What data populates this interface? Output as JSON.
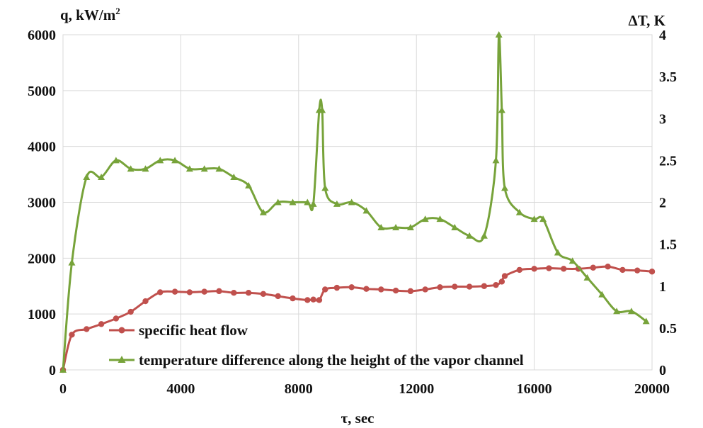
{
  "chart_data": {
    "type": "line",
    "title": "",
    "xlabel": "τ, sec",
    "ylabel_left": "q, kW/m",
    "ylabel_left_sup": "2",
    "ylabel_right": "ΔT, K",
    "xlim": [
      0,
      20000
    ],
    "ylim_left": [
      0,
      6000
    ],
    "ylim_right": [
      0,
      4
    ],
    "x_ticks": [
      "0",
      "4000",
      "8000",
      "12000",
      "16000",
      "20000"
    ],
    "y_left_ticks": [
      "0",
      "1000",
      "2000",
      "3000",
      "4000",
      "5000",
      "6000"
    ],
    "y_right_ticks": [
      "0",
      "0.5",
      "1",
      "1.5",
      "2",
      "2.5",
      "3",
      "3.5",
      "4"
    ],
    "grid": true,
    "legend_position": "bottom-left",
    "series": [
      {
        "name": "specific heat flow",
        "axis": "left",
        "color": "#c0504d",
        "marker": "circle",
        "x": [
          0,
          300,
          800,
          1300,
          1800,
          2300,
          2800,
          3300,
          3800,
          4300,
          4800,
          5300,
          5800,
          6300,
          6800,
          7300,
          7800,
          8300,
          8500,
          8700,
          8900,
          9300,
          9800,
          10300,
          10800,
          11300,
          11800,
          12300,
          12800,
          13300,
          13800,
          14300,
          14700,
          14900,
          15000,
          15500,
          16000,
          16500,
          17000,
          17500,
          18000,
          18500,
          19000,
          19500,
          20000
        ],
        "y": [
          0,
          630,
          730,
          820,
          920,
          1040,
          1230,
          1390,
          1400,
          1390,
          1400,
          1410,
          1380,
          1380,
          1360,
          1320,
          1280,
          1250,
          1260,
          1250,
          1440,
          1470,
          1480,
          1450,
          1440,
          1420,
          1410,
          1440,
          1480,
          1490,
          1490,
          1500,
          1520,
          1580,
          1680,
          1790,
          1810,
          1820,
          1810,
          1810,
          1830,
          1850,
          1790,
          1780,
          1760
        ]
      },
      {
        "name": "temperature difference along the height of the vapor channel",
        "axis": "right",
        "color": "#77a33a",
        "marker": "triangle",
        "x": [
          0,
          300,
          800,
          1300,
          1800,
          2300,
          2800,
          3300,
          3800,
          4300,
          4800,
          5300,
          5800,
          6300,
          6800,
          7300,
          7800,
          8300,
          8500,
          8700,
          8800,
          8900,
          9300,
          9800,
          10300,
          10800,
          11300,
          11800,
          12300,
          12800,
          13300,
          13800,
          14300,
          14700,
          14800,
          14900,
          15000,
          15500,
          16000,
          16300,
          16800,
          17300,
          17800,
          18300,
          18800,
          19300,
          19800
        ],
        "y": [
          0,
          1.28,
          2.3,
          2.3,
          2.5,
          2.4,
          2.4,
          2.5,
          2.5,
          2.4,
          2.4,
          2.4,
          2.3,
          2.2,
          1.88,
          2.0,
          2.0,
          2.0,
          1.98,
          3.1,
          3.1,
          2.17,
          1.98,
          2.0,
          1.9,
          1.7,
          1.7,
          1.7,
          1.8,
          1.8,
          1.7,
          1.6,
          1.6,
          2.5,
          4.0,
          3.1,
          2.17,
          1.88,
          1.8,
          1.8,
          1.4,
          1.3,
          1.1,
          0.9,
          0.7,
          0.7,
          0.58
        ]
      }
    ]
  }
}
